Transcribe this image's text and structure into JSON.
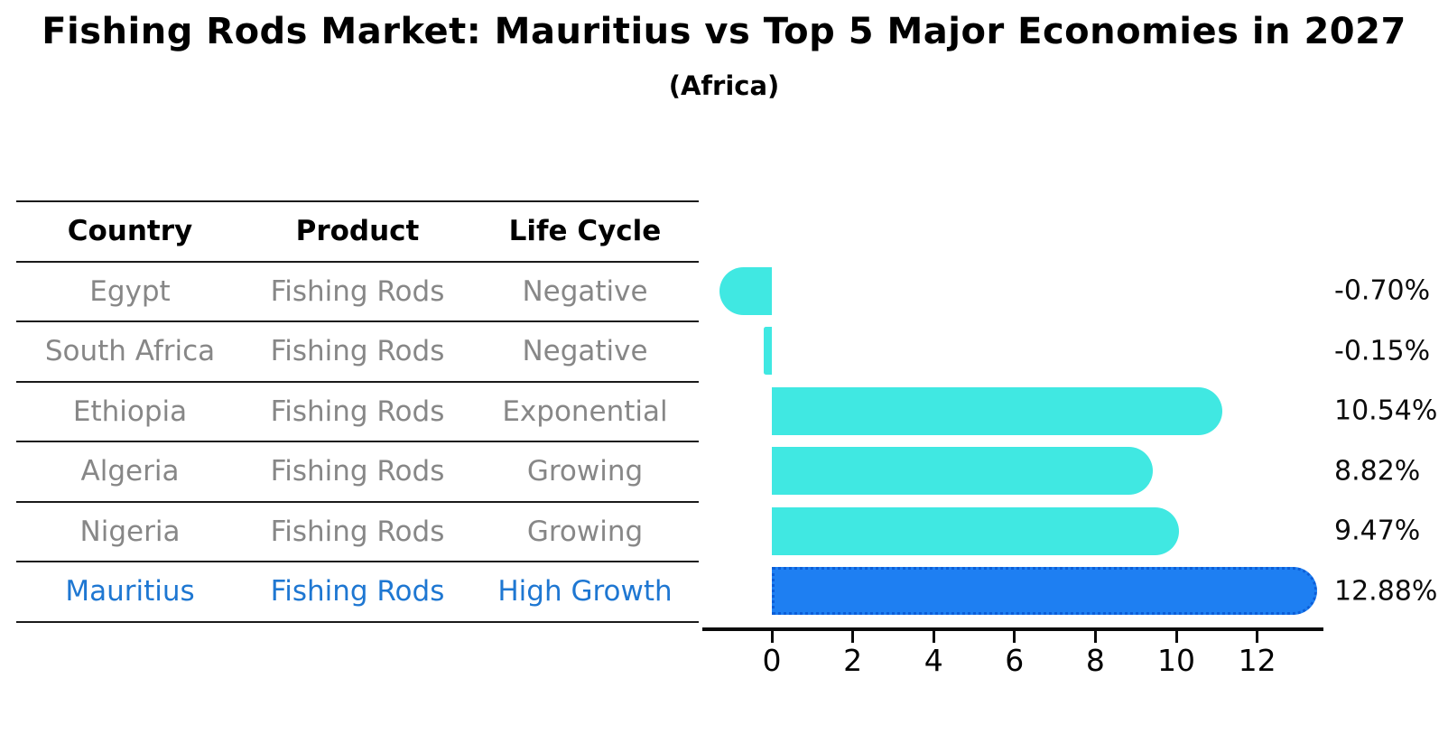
{
  "title": "Fishing Rods Market: Mauritius vs Top 5 Major Economies in 2027",
  "subtitle": "(Africa)",
  "table": {
    "headers": [
      "Country",
      "Product",
      "Life Cycle"
    ],
    "rows": [
      {
        "country": "Egypt",
        "product": "Fishing Rods",
        "life_cycle": "Negative",
        "highlight": false
      },
      {
        "country": "South Africa",
        "product": "Fishing Rods",
        "life_cycle": "Negative",
        "highlight": false
      },
      {
        "country": "Ethiopia",
        "product": "Fishing Rods",
        "life_cycle": "Exponential",
        "highlight": false
      },
      {
        "country": "Algeria",
        "product": "Fishing Rods",
        "life_cycle": "Growing",
        "highlight": false
      },
      {
        "country": "Nigeria",
        "product": "Fishing Rods",
        "life_cycle": "Growing",
        "highlight": false
      },
      {
        "country": "Mauritius",
        "product": "Fishing Rods",
        "life_cycle": "High Growth",
        "highlight": true
      }
    ]
  },
  "chart_data": {
    "type": "bar",
    "orientation": "horizontal",
    "title": "Fishing Rods Market: Mauritius vs Top 5 Major Economies in 2027 (Africa)",
    "categories": [
      "Egypt",
      "South Africa",
      "Ethiopia",
      "Algeria",
      "Nigeria",
      "Mauritius"
    ],
    "values": [
      -0.7,
      -0.15,
      10.54,
      8.82,
      9.47,
      12.88
    ],
    "value_labels": [
      "-0.70%",
      "-0.15%",
      "10.54%",
      "8.82%",
      "9.47%",
      "12.88%"
    ],
    "unit": "%",
    "x_ticks": [
      0,
      2,
      4,
      6,
      8,
      10,
      12
    ],
    "xlim": [
      -1.75,
      13.65
    ],
    "grid": false,
    "legend": false,
    "highlight_category": "Mauritius",
    "colors": {
      "bar": "#40e8e2",
      "highlight_bar": "#1e7ff2",
      "highlight_border": "#0c5ed8",
      "table_text": "#878787",
      "highlight_text": "#1e77d2"
    }
  }
}
